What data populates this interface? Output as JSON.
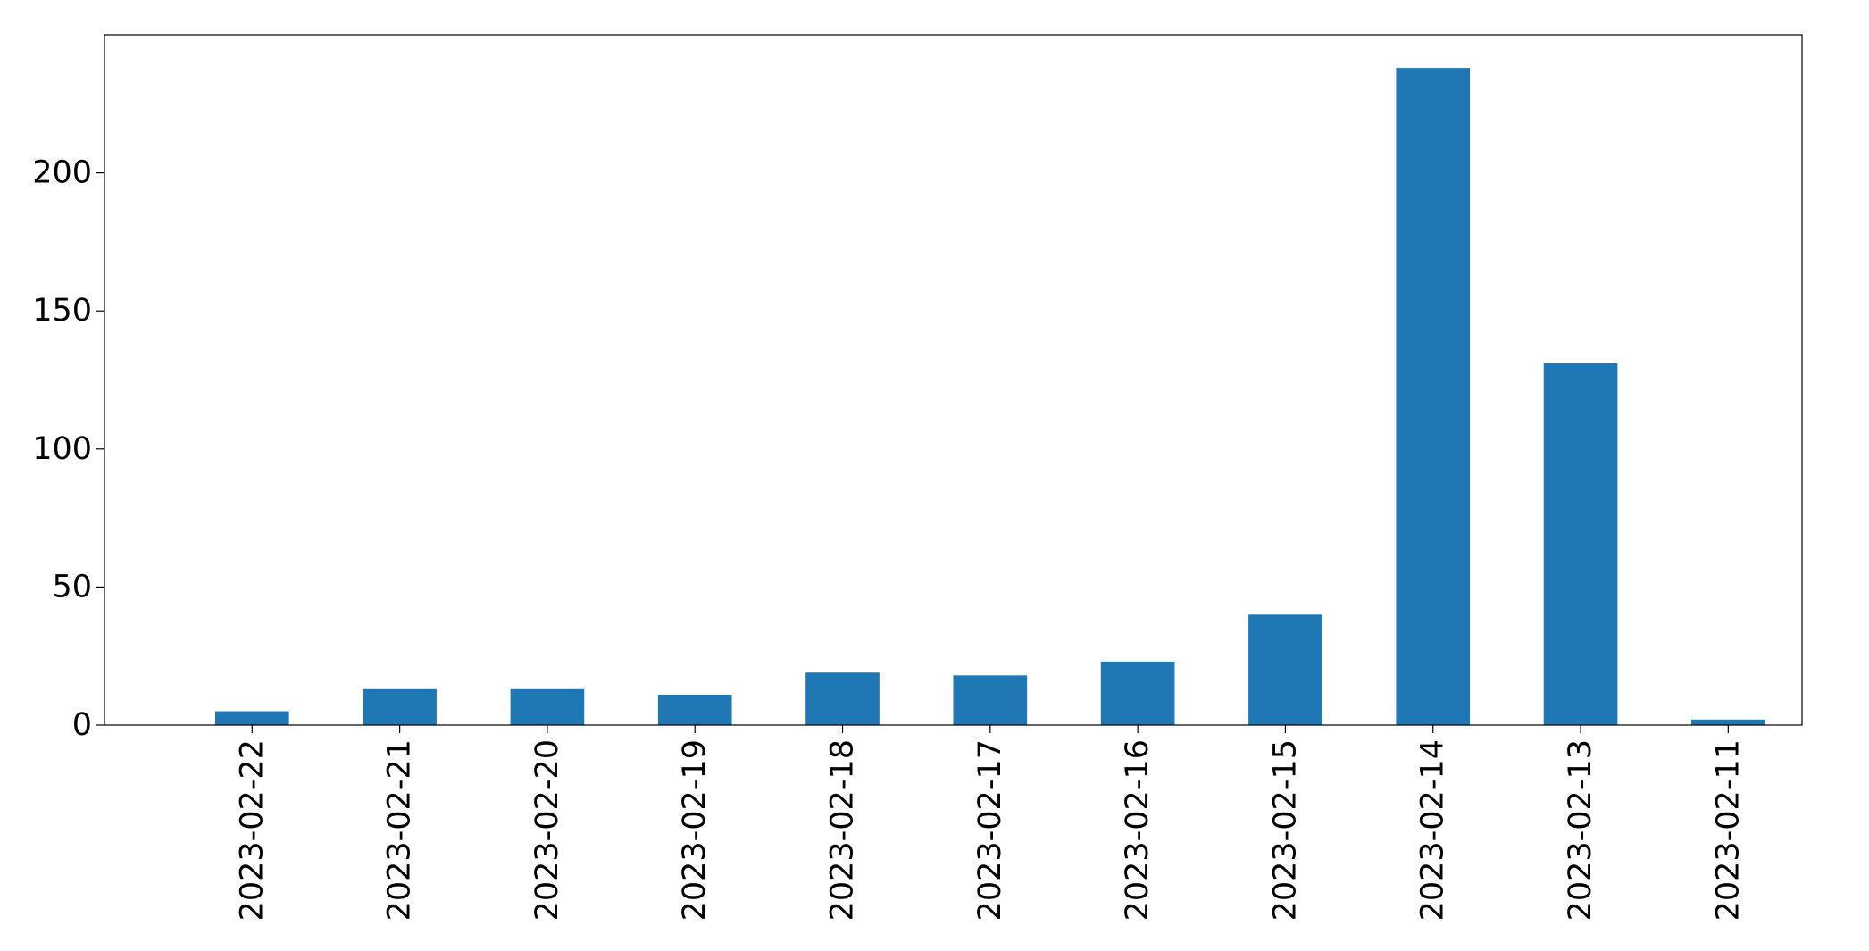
{
  "chart_data": {
    "type": "bar",
    "title": "",
    "xlabel": "",
    "ylabel": "",
    "categories": [
      "2023-02-22",
      "2023-02-21",
      "2023-02-20",
      "2023-02-19",
      "2023-02-18",
      "2023-02-17",
      "2023-02-16",
      "2023-02-15",
      "2023-02-14",
      "2023-02-13",
      "2023-02-11"
    ],
    "values": [
      5,
      13,
      13,
      11,
      19,
      18,
      23,
      40,
      238,
      131,
      2
    ],
    "ylim": [
      0,
      250
    ],
    "yticks": [
      0,
      50,
      100,
      150,
      200
    ],
    "grid": false,
    "legend": "none",
    "bar_color": "#1f77b4",
    "axis_color": "#000000",
    "background": "#ffffff"
  }
}
